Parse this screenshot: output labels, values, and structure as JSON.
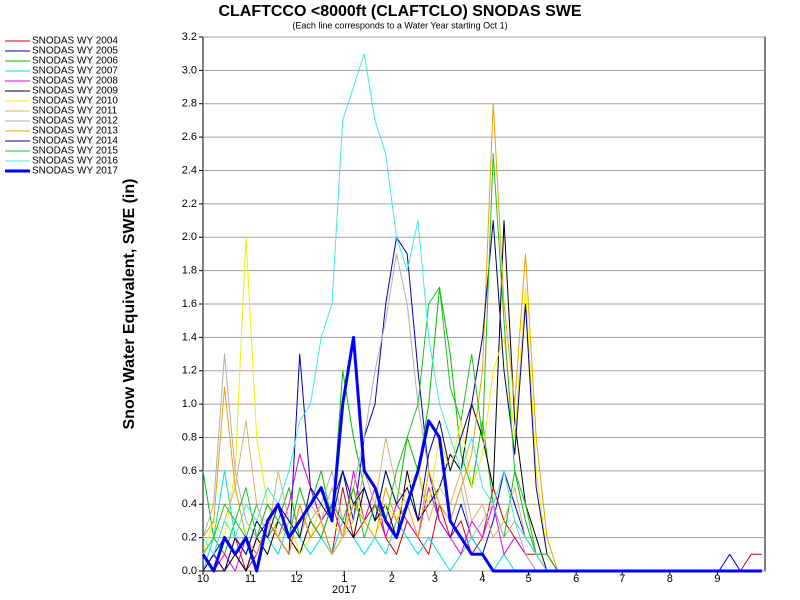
{
  "chart_data": {
    "type": "line",
    "title": "CLAFTCCO <8000ft (CLAFTCLO) SNODAS SWE",
    "subtitle": "(Each line corresponds to a Water Year starting Oct 1)",
    "y_label": "Snow Water Equivalent, SWE (in)",
    "year_label": "2017",
    "grid": true,
    "legend": "left",
    "xlim": [
      0,
      366
    ],
    "xticks": [
      {
        "value": 0,
        "label": "10"
      },
      {
        "value": 31,
        "label": "11"
      },
      {
        "value": 61,
        "label": "12"
      },
      {
        "value": 92,
        "label": "1"
      },
      {
        "value": 123,
        "label": "2"
      },
      {
        "value": 151,
        "label": "3"
      },
      {
        "value": 182,
        "label": "4"
      },
      {
        "value": 212,
        "label": "5"
      },
      {
        "value": 243,
        "label": "6"
      },
      {
        "value": 273,
        "label": "7"
      },
      {
        "value": 304,
        "label": "8"
      },
      {
        "value": 335,
        "label": "9"
      }
    ],
    "ylim": [
      0,
      3.2
    ],
    "yticks": [
      {
        "value": 0,
        "label": "0.0"
      },
      0.2,
      0.4,
      0.6,
      0.8,
      {
        "value": 1,
        "label": "1.0"
      },
      1.2,
      1.4,
      1.6,
      1.8,
      {
        "value": 2,
        "label": "2.0"
      },
      2.2,
      2.4,
      2.6,
      2.8,
      {
        "value": 3,
        "label": "3.0"
      },
      3.2
    ],
    "x": [
      0,
      7,
      14,
      21,
      28,
      35,
      42,
      49,
      56,
      63,
      70,
      77,
      84,
      91,
      98,
      105,
      112,
      119,
      126,
      133,
      140,
      147,
      154,
      161,
      168,
      175,
      182,
      189,
      196,
      203,
      210,
      217,
      224,
      231,
      238,
      245,
      252,
      259,
      266,
      273,
      280,
      287,
      294,
      301,
      308,
      315,
      322,
      329,
      336,
      343,
      350,
      357,
      364
    ],
    "series": [
      {
        "name": "SNODAS WY 2004",
        "color": "#d00000",
        "width": 1,
        "values": [
          0,
          0.1,
          0,
          0.2,
          0,
          0.1,
          0.3,
          0.2,
          0.1,
          0.4,
          0.2,
          0.3,
          0.1,
          0.5,
          0.2,
          0.3,
          0.4,
          0.2,
          0.1,
          0.3,
          0.2,
          0.1,
          0.4,
          0.2,
          0.3,
          0.1,
          0.2,
          0.5,
          0.3,
          0.2,
          0.1,
          0.1,
          0,
          0,
          0,
          0,
          0,
          0,
          0,
          0,
          0,
          0,
          0,
          0,
          0,
          0,
          0,
          0,
          0,
          0,
          0,
          0.1,
          0.1
        ]
      },
      {
        "name": "SNODAS WY 2005",
        "color": "#0000c0",
        "width": 1,
        "values": [
          0,
          0.1,
          0.2,
          0.1,
          0,
          0.2,
          0.3,
          0.2,
          0.1,
          1.3,
          0.5,
          0.3,
          0.4,
          0.6,
          0.3,
          0.8,
          1.0,
          1.6,
          2.0,
          1.9,
          1.2,
          0.6,
          0.3,
          0.2,
          0.4,
          0.2,
          0.1,
          0.3,
          0.6,
          0.4,
          0.2,
          0.1,
          0,
          0,
          0,
          0,
          0,
          0,
          0,
          0,
          0,
          0,
          0,
          0,
          0,
          0,
          0,
          0,
          0,
          0.1,
          0,
          0,
          0
        ]
      },
      {
        "name": "SNODAS WY 2006",
        "color": "#00c000",
        "width": 1,
        "values": [
          0.6,
          0.2,
          0.1,
          0.3,
          0.2,
          0.4,
          0.2,
          0.3,
          0.5,
          0.2,
          0.4,
          0.6,
          0.3,
          1.2,
          0.8,
          0.5,
          0.3,
          0.6,
          0.4,
          0.8,
          0.6,
          1.0,
          1.7,
          1.3,
          0.7,
          0.5,
          0.9,
          0.4,
          0.2,
          0.6,
          0.3,
          0.1,
          0.1,
          0,
          0,
          0,
          0,
          0,
          0,
          0,
          0,
          0,
          0,
          0,
          0,
          0,
          0,
          0,
          0,
          0,
          0,
          0,
          0
        ]
      },
      {
        "name": "SNODAS WY 2007",
        "color": "#00e0e0",
        "width": 1,
        "values": [
          0,
          0.2,
          0.6,
          0.2,
          0.1,
          0.3,
          0.2,
          0.1,
          0.3,
          0.2,
          0.1,
          0.2,
          0.1,
          0.3,
          0.2,
          0.1,
          0.2,
          0.1,
          0.3,
          0.2,
          0.1,
          0.2,
          0.1,
          0,
          0.1,
          0.2,
          0.1,
          0,
          0.1,
          0,
          0,
          0,
          0,
          0,
          0,
          0,
          0,
          0,
          0,
          0,
          0,
          0,
          0,
          0,
          0,
          0,
          0,
          0,
          0,
          0,
          0,
          0,
          0
        ]
      },
      {
        "name": "SNODAS WY 2008",
        "color": "#e000e0",
        "width": 1,
        "values": [
          0,
          0,
          0.1,
          0,
          0.2,
          0.1,
          0.3,
          0.2,
          0.4,
          0.7,
          0.5,
          0.3,
          0.4,
          0.2,
          0.6,
          0.3,
          0.5,
          0.2,
          0.4,
          0.3,
          0.2,
          0.5,
          0.3,
          0.2,
          0.1,
          0.3,
          0.2,
          0.4,
          0.1,
          0.2,
          0.1,
          0,
          0,
          0,
          0,
          0,
          0,
          0,
          0,
          0,
          0,
          0,
          0,
          0,
          0,
          0,
          0,
          0,
          0,
          0,
          0,
          0,
          0
        ]
      },
      {
        "name": "SNODAS WY 2009",
        "color": "#000000",
        "width": 1,
        "values": [
          0,
          0,
          0,
          0.1,
          0,
          0.2,
          0.1,
          0.3,
          0.2,
          0.1,
          0.3,
          0.2,
          0.4,
          0.3,
          0.2,
          0.5,
          0.3,
          0.4,
          0.2,
          0.6,
          0.3,
          0.4,
          0.5,
          0.7,
          0.6,
          1.0,
          0.8,
          0.5,
          2.1,
          0.9,
          0.4,
          0.2,
          0,
          0,
          0,
          0,
          0,
          0,
          0,
          0,
          0,
          0,
          0,
          0,
          0,
          0,
          0,
          0,
          0,
          0,
          0,
          0,
          0
        ]
      },
      {
        "name": "SNODAS WY 2010",
        "color": "#f0f000",
        "width": 1,
        "values": [
          0.1,
          0.3,
          0.2,
          0.6,
          2.0,
          0.8,
          0.4,
          0.2,
          0.3,
          0.1,
          0.2,
          0.4,
          0.3,
          0.2,
          0.5,
          0.3,
          0.2,
          0.4,
          0.3,
          0.5,
          0.6,
          0.4,
          0.8,
          0.6,
          0.9,
          0.5,
          0.7,
          1.2,
          1.4,
          0.8,
          1.7,
          0.6,
          0.1,
          0,
          0,
          0,
          0,
          0,
          0,
          0,
          0,
          0,
          0,
          0,
          0,
          0,
          0,
          0,
          0,
          0,
          0,
          0,
          0
        ]
      },
      {
        "name": "SNODAS WY 2011",
        "color": "#d8b070",
        "width": 1,
        "values": [
          0,
          0.1,
          0.3,
          0.5,
          0.9,
          0.4,
          0.2,
          0.6,
          0.3,
          0.2,
          0.4,
          0.3,
          0.5,
          0.2,
          0.3,
          0.6,
          0.4,
          0.8,
          0.5,
          0.4,
          0.6,
          0.3,
          0.5,
          0.4,
          0.6,
          0.3,
          0.4,
          0.2,
          0.3,
          0.5,
          0.2,
          0.1,
          0,
          0,
          0,
          0,
          0,
          0,
          0,
          0,
          0,
          0,
          0,
          0,
          0,
          0,
          0,
          0,
          0,
          0,
          0,
          0,
          0
        ]
      },
      {
        "name": "SNODAS WY 2012",
        "color": "#b0b0b0",
        "width": 1,
        "values": [
          0.2,
          0.4,
          1.3,
          0.6,
          0.3,
          0.2,
          0.4,
          0.3,
          0.2,
          0.5,
          0.3,
          0.4,
          0.6,
          0.3,
          0.5,
          0.8,
          1.2,
          1.5,
          1.9,
          1.6,
          1.0,
          0.6,
          0.4,
          0.3,
          0.5,
          0.2,
          0.3,
          0.4,
          0.2,
          0.3,
          0.1,
          0,
          0,
          0,
          0,
          0,
          0,
          0,
          0,
          0,
          0,
          0,
          0,
          0,
          0,
          0,
          0,
          0,
          0,
          0,
          0,
          0,
          0
        ]
      },
      {
        "name": "SNODAS WY 2013",
        "color": "#f0a000",
        "width": 1,
        "values": [
          0.2,
          0.3,
          1.1,
          0.5,
          0.2,
          0.1,
          0.3,
          0.2,
          0.1,
          0.4,
          0.2,
          0.3,
          0.1,
          0.2,
          0.4,
          0.3,
          0.2,
          0.5,
          0.3,
          0.4,
          0.2,
          0.6,
          0.4,
          0.3,
          0.5,
          0.7,
          1.2,
          2.8,
          1.6,
          1.0,
          1.9,
          0.8,
          0.2,
          0,
          0,
          0,
          0,
          0,
          0,
          0,
          0,
          0,
          0,
          0,
          0,
          0,
          0,
          0,
          0,
          0,
          0,
          0,
          0
        ]
      },
      {
        "name": "SNODAS WY 2014",
        "color": "#000080",
        "width": 1,
        "values": [
          0,
          0.1,
          0,
          0.2,
          0.1,
          0.3,
          0.2,
          0.4,
          0.3,
          0.2,
          0.5,
          0.4,
          0.3,
          0.6,
          0.4,
          0.5,
          0.3,
          0.6,
          0.4,
          0.5,
          0.3,
          0.7,
          0.9,
          0.6,
          0.8,
          1.0,
          1.4,
          2.1,
          1.2,
          0.7,
          1.6,
          0.5,
          0.1,
          0,
          0,
          0,
          0,
          0,
          0,
          0,
          0,
          0,
          0,
          0,
          0,
          0,
          0,
          0,
          0,
          0,
          0,
          0,
          0
        ]
      },
      {
        "name": "SNODAS WY 2015",
        "color": "#20c020",
        "width": 1,
        "values": [
          0.1,
          0.2,
          0.4,
          0.3,
          0.5,
          0.2,
          0.4,
          0.3,
          0.2,
          0.5,
          0.3,
          0.2,
          0.4,
          0.3,
          0.5,
          0.2,
          0.4,
          0.3,
          0.6,
          0.8,
          1.0,
          1.6,
          1.7,
          1.1,
          0.9,
          1.3,
          0.8,
          2.5,
          1.5,
          0.6,
          0.4,
          0.1,
          0.1,
          0,
          0,
          0,
          0,
          0,
          0,
          0,
          0,
          0,
          0,
          0,
          0,
          0,
          0,
          0,
          0,
          0,
          0,
          0,
          0
        ]
      },
      {
        "name": "SNODAS WY 2016",
        "color": "#40e8e8",
        "width": 1,
        "values": [
          0.2,
          0.1,
          0.3,
          0.2,
          0.4,
          0.3,
          0.5,
          0.4,
          0.6,
          0.9,
          1.0,
          1.4,
          1.6,
          2.7,
          2.9,
          3.1,
          2.7,
          2.5,
          2.0,
          1.8,
          2.1,
          1.4,
          1.0,
          0.8,
          0.6,
          0.8,
          0.5,
          0.4,
          0.6,
          0.3,
          0.2,
          0.1,
          0,
          0,
          0,
          0,
          0,
          0,
          0,
          0,
          0,
          0,
          0,
          0,
          0,
          0,
          0,
          0,
          0,
          0,
          0,
          0,
          0
        ]
      },
      {
        "name": "SNODAS WY 2017",
        "color": "#0000ff",
        "width": 3,
        "values": [
          0.1,
          0,
          0.2,
          0.1,
          0.2,
          0,
          0.3,
          0.4,
          0.2,
          0.3,
          0.4,
          0.5,
          0.3,
          1.0,
          1.4,
          0.6,
          0.5,
          0.3,
          0.2,
          0.4,
          0.6,
          0.9,
          0.8,
          0.3,
          0.2,
          0.1,
          0.1,
          0,
          0,
          0,
          0,
          0,
          0,
          0,
          0,
          0,
          0,
          0,
          0,
          0,
          0,
          0,
          0,
          0,
          0,
          0,
          0,
          0,
          0,
          0,
          0,
          0,
          0
        ]
      }
    ]
  }
}
